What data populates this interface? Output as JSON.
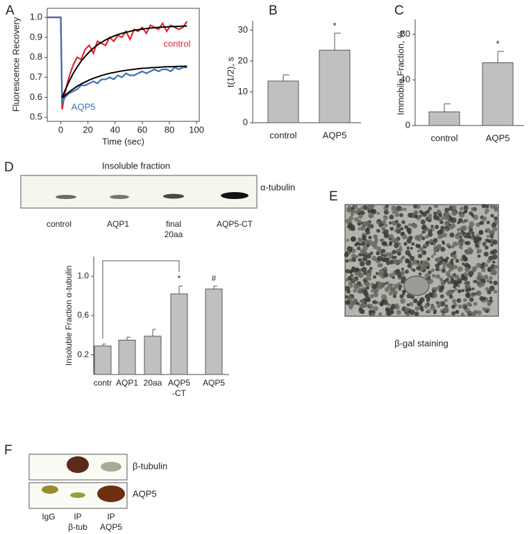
{
  "panel_labels": [
    "A",
    "B",
    "C",
    "D",
    "E",
    "F"
  ],
  "chart_data": [
    {
      "type": "line",
      "xlabel": "Time (sec)",
      "ylabel": "Fluorescence Recovery",
      "x": [
        -10,
        0,
        1,
        3,
        6,
        9,
        12,
        15,
        18,
        21,
        24,
        27,
        30,
        33,
        36,
        39,
        42,
        45,
        48,
        51,
        54,
        57,
        60,
        63,
        66,
        69,
        72,
        75,
        78,
        81,
        84,
        87,
        90,
        93
      ],
      "series": [
        {
          "name": "control",
          "color": "#e0262c",
          "values": [
            1.0,
            1.0,
            0.54,
            0.62,
            0.7,
            0.76,
            0.8,
            0.79,
            0.84,
            0.86,
            0.82,
            0.88,
            0.87,
            0.86,
            0.9,
            0.88,
            0.91,
            0.9,
            0.93,
            0.89,
            0.94,
            0.93,
            0.95,
            0.92,
            0.96,
            0.95,
            0.94,
            0.97,
            0.93,
            0.96,
            0.95,
            0.94,
            0.95,
            0.98
          ]
        },
        {
          "name": "AQP5",
          "color": "#3b6fb6",
          "values": [
            1.0,
            1.0,
            0.57,
            0.6,
            0.62,
            0.63,
            0.64,
            0.66,
            0.66,
            0.67,
            0.68,
            0.67,
            0.69,
            0.69,
            0.7,
            0.69,
            0.71,
            0.7,
            0.72,
            0.71,
            0.71,
            0.72,
            0.73,
            0.72,
            0.73,
            0.74,
            0.73,
            0.74,
            0.74,
            0.73,
            0.75,
            0.74,
            0.75,
            0.75
          ]
        },
        {
          "color": "#000000",
          "values": [
            null,
            null,
            0.599,
            0.633,
            0.678,
            0.718,
            0.751,
            0.781,
            0.805,
            0.827,
            0.846,
            0.862,
            0.875,
            0.887,
            0.897,
            0.906,
            0.914,
            0.92,
            0.925,
            0.93,
            0.935,
            0.938,
            0.941,
            0.944,
            0.946,
            0.948,
            0.95,
            0.951,
            0.952,
            0.954,
            0.954,
            0.955,
            0.956,
            0.956
          ]
        },
        {
          "color": "#000000",
          "values": [
            null,
            null,
            0.597,
            0.609,
            0.626,
            0.641,
            0.655,
            0.667,
            0.677,
            0.687,
            0.695,
            0.702,
            0.709,
            0.715,
            0.72,
            0.724,
            0.728,
            0.732,
            0.735,
            0.738,
            0.74,
            0.743,
            0.745,
            0.746,
            0.748,
            0.749,
            0.75,
            0.752,
            0.753,
            0.753,
            0.754,
            0.755,
            0.755,
            0.756
          ]
        }
      ],
      "xlim": [
        -10,
        102
      ],
      "xticks": [
        0,
        20,
        40,
        60,
        80,
        100
      ],
      "ylim": [
        0.48,
        1.045
      ],
      "yticks": [
        0.5,
        0.6,
        0.7,
        0.8,
        0.9,
        {
          "value": 1,
          "label": "1.0"
        }
      ]
    },
    {
      "type": "bar",
      "ylabel": "t(1/2), s",
      "categories": [
        "control",
        "AQP5"
      ],
      "series": [
        {
          "color": "#c0c0c0",
          "values": [
            13.5,
            23.5
          ],
          "errors": [
            2,
            5.5
          ]
        }
      ],
      "ylim": [
        0,
        33
      ],
      "yticks": [
        0,
        10,
        20,
        30
      ],
      "annotations": [
        "*"
      ]
    },
    {
      "type": "bar",
      "ylabel": "Immobile Fraction, %",
      "categories": [
        "control",
        "AQP5"
      ],
      "series": [
        {
          "color": "#c0c0c0",
          "values": [
            12,
            55
          ],
          "errors": [
            7,
            10
          ]
        }
      ],
      "ylim": [
        0,
        93
      ],
      "yticks": [
        0,
        40,
        80
      ],
      "annotations": [
        "*"
      ]
    },
    {
      "type": "bar",
      "ylabel": "Insoluble Fraction α-tubulin",
      "categories": [
        "contr",
        "AQP1",
        "20aa",
        [
          "AQP5",
          "-CT"
        ],
        "AQP5"
      ],
      "series": [
        {
          "color": "#c0c0c0",
          "values": [
            0.29,
            0.35,
            0.39,
            0.82,
            0.87
          ],
          "errors": [
            0.02,
            0.03,
            0.07,
            0.08,
            0.03
          ]
        }
      ],
      "ylim": [
        0,
        1.2
      ],
      "yticks": [
        0.2,
        0.6,
        {
          "value": 1,
          "label": "1.0"
        }
      ],
      "annotations": [
        "*",
        "#"
      ]
    }
  ],
  "blot_d": {
    "title": "Insoluble fraction",
    "band_label": "α-tubulin",
    "lanes": [
      [
        "control"
      ],
      [
        "AQP1"
      ],
      [
        "final",
        "20aa"
      ],
      [
        "AQP5-CT"
      ]
    ]
  },
  "image_e": {
    "caption": "β-gal staining"
  },
  "blot_f": {
    "rows": [
      "β-tubulin",
      "AQP5"
    ],
    "lanes": [
      [
        "IgG"
      ],
      [
        "IP",
        "β-tub"
      ],
      [
        "IP",
        "AQP5"
      ]
    ]
  }
}
